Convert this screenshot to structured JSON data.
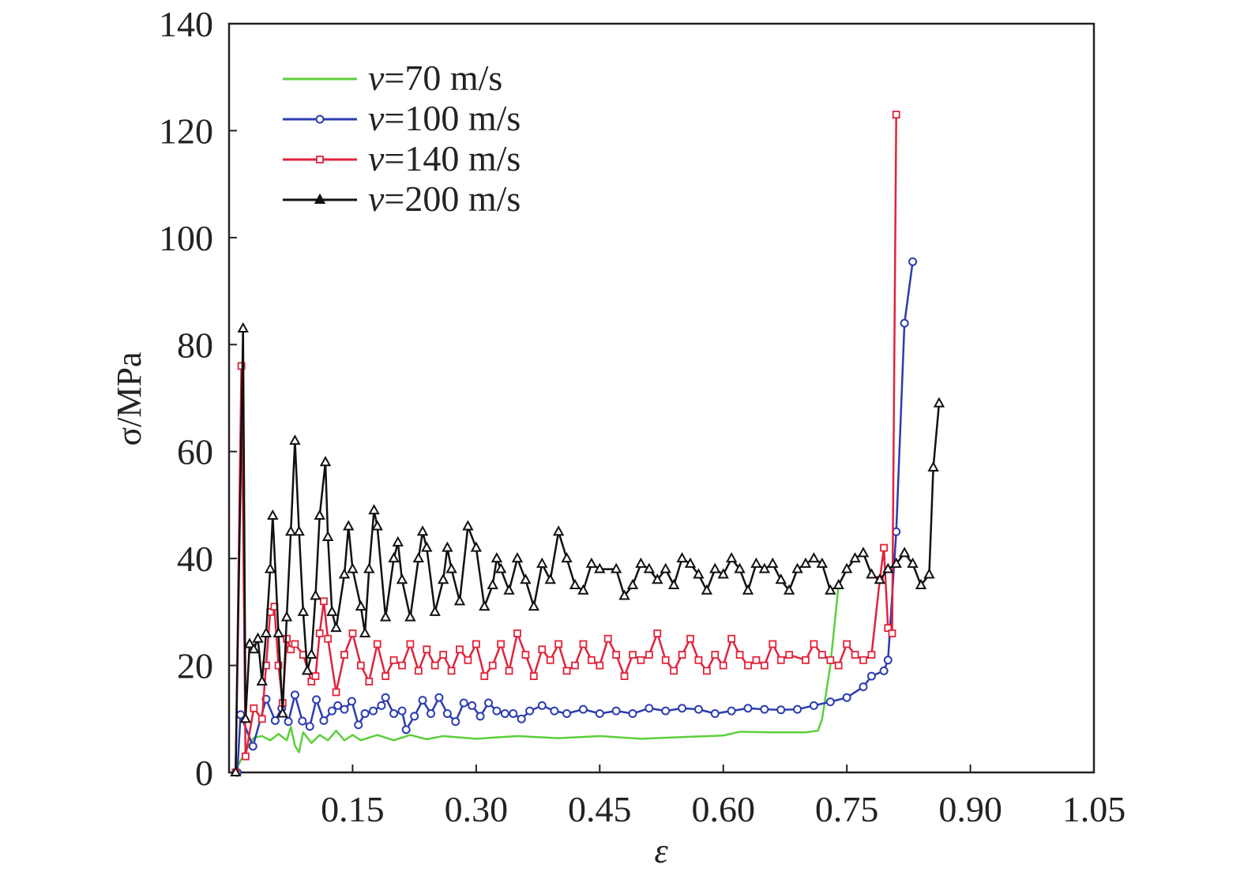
{
  "chart_data": {
    "type": "line",
    "title": "",
    "xlabel": "ε",
    "ylabel": "σ/MPa",
    "xlim": [
      0,
      1.05
    ],
    "ylim": [
      0,
      140
    ],
    "x_ticks": [
      "0.15",
      "0.30",
      "0.45",
      "0.60",
      "0.75",
      "0.90",
      "1.05"
    ],
    "x_tick_values": [
      0.15,
      0.3,
      0.45,
      0.6,
      0.75,
      0.9,
      1.05
    ],
    "y_ticks": [
      "0",
      "20",
      "40",
      "60",
      "80",
      "100",
      "120",
      "140"
    ],
    "y_tick_values": [
      0,
      20,
      40,
      60,
      80,
      100,
      120,
      140
    ],
    "grid": false,
    "legend_position": "top-left",
    "series": [
      {
        "name": "v=70 m/s",
        "v_prefix": "v",
        "label_rest": "=70 m/s",
        "color": "#5ccf3c",
        "marker": "none",
        "points": [
          [
            0.005,
            0
          ],
          [
            0.01,
            1
          ],
          [
            0.02,
            4
          ],
          [
            0.03,
            6.5
          ],
          [
            0.04,
            6.8
          ],
          [
            0.05,
            6
          ],
          [
            0.06,
            7.2
          ],
          [
            0.07,
            6
          ],
          [
            0.075,
            8.5
          ],
          [
            0.08,
            5
          ],
          [
            0.085,
            3.8
          ],
          [
            0.09,
            7.5
          ],
          [
            0.1,
            5.5
          ],
          [
            0.11,
            7
          ],
          [
            0.12,
            6
          ],
          [
            0.13,
            7.8
          ],
          [
            0.14,
            6
          ],
          [
            0.15,
            7
          ],
          [
            0.16,
            6
          ],
          [
            0.18,
            7
          ],
          [
            0.2,
            6
          ],
          [
            0.22,
            7
          ],
          [
            0.24,
            6.2
          ],
          [
            0.26,
            6.8
          ],
          [
            0.3,
            6.3
          ],
          [
            0.35,
            6.8
          ],
          [
            0.4,
            6.4
          ],
          [
            0.45,
            6.8
          ],
          [
            0.5,
            6.3
          ],
          [
            0.55,
            6.6
          ],
          [
            0.6,
            6.9
          ],
          [
            0.62,
            7.6
          ],
          [
            0.66,
            7.5
          ],
          [
            0.7,
            7.5
          ],
          [
            0.715,
            7.8
          ],
          [
            0.72,
            10
          ],
          [
            0.73,
            20
          ],
          [
            0.74,
            35
          ]
        ]
      },
      {
        "name": "v=100 m/s",
        "v_prefix": "v",
        "label_rest": "=100 m/s",
        "color": "#2b3cb0",
        "marker": "circle",
        "points": [
          [
            0.01,
            0
          ],
          [
            0.014,
            10.8
          ],
          [
            0.029,
            4.9
          ],
          [
            0.045,
            13.7
          ],
          [
            0.056,
            9.7
          ],
          [
            0.064,
            12
          ],
          [
            0.072,
            9.5
          ],
          [
            0.08,
            14.5
          ],
          [
            0.089,
            9.6
          ],
          [
            0.098,
            8.6
          ],
          [
            0.106,
            13.6
          ],
          [
            0.115,
            9.7
          ],
          [
            0.125,
            11.5
          ],
          [
            0.132,
            12.5
          ],
          [
            0.14,
            11.8
          ],
          [
            0.149,
            13.3
          ],
          [
            0.157,
            8.9
          ],
          [
            0.165,
            11
          ],
          [
            0.175,
            11.5
          ],
          [
            0.185,
            12.5
          ],
          [
            0.19,
            14
          ],
          [
            0.2,
            11
          ],
          [
            0.21,
            11.5
          ],
          [
            0.215,
            8
          ],
          [
            0.225,
            10.5
          ],
          [
            0.235,
            13.5
          ],
          [
            0.245,
            11
          ],
          [
            0.255,
            14
          ],
          [
            0.265,
            11
          ],
          [
            0.275,
            9.5
          ],
          [
            0.285,
            13
          ],
          [
            0.295,
            12.5
          ],
          [
            0.305,
            10.5
          ],
          [
            0.315,
            13
          ],
          [
            0.325,
            11.5
          ],
          [
            0.335,
            11
          ],
          [
            0.345,
            11
          ],
          [
            0.355,
            10
          ],
          [
            0.365,
            11.5
          ],
          [
            0.38,
            12.5
          ],
          [
            0.395,
            11.5
          ],
          [
            0.41,
            11
          ],
          [
            0.43,
            11.8
          ],
          [
            0.45,
            11
          ],
          [
            0.47,
            11.5
          ],
          [
            0.49,
            11
          ],
          [
            0.51,
            12
          ],
          [
            0.53,
            11.5
          ],
          [
            0.55,
            12
          ],
          [
            0.57,
            11.8
          ],
          [
            0.59,
            11
          ],
          [
            0.61,
            11.5
          ],
          [
            0.63,
            12
          ],
          [
            0.65,
            11.8
          ],
          [
            0.67,
            11.7
          ],
          [
            0.69,
            11.8
          ],
          [
            0.71,
            12.5
          ],
          [
            0.73,
            13.2
          ],
          [
            0.75,
            14
          ],
          [
            0.77,
            16
          ],
          [
            0.78,
            18
          ],
          [
            0.795,
            19
          ],
          [
            0.8,
            21
          ],
          [
            0.81,
            45
          ],
          [
            0.82,
            84
          ],
          [
            0.83,
            95.5
          ]
        ]
      },
      {
        "name": "v=140 m/s",
        "v_prefix": "v",
        "label_rest": "=140 m/s",
        "color": "#e0233a",
        "marker": "square",
        "points": [
          [
            0.008,
            0
          ],
          [
            0.015,
            76
          ],
          [
            0.02,
            3
          ],
          [
            0.03,
            12
          ],
          [
            0.04,
            10
          ],
          [
            0.045,
            20
          ],
          [
            0.05,
            30
          ],
          [
            0.055,
            31
          ],
          [
            0.06,
            20
          ],
          [
            0.065,
            13
          ],
          [
            0.07,
            25
          ],
          [
            0.075,
            23
          ],
          [
            0.08,
            24
          ],
          [
            0.09,
            22
          ],
          [
            0.1,
            17
          ],
          [
            0.105,
            18
          ],
          [
            0.11,
            26
          ],
          [
            0.115,
            32
          ],
          [
            0.12,
            25
          ],
          [
            0.13,
            15
          ],
          [
            0.14,
            22
          ],
          [
            0.15,
            26
          ],
          [
            0.16,
            20
          ],
          [
            0.17,
            17
          ],
          [
            0.18,
            24
          ],
          [
            0.19,
            18
          ],
          [
            0.2,
            21
          ],
          [
            0.21,
            20
          ],
          [
            0.22,
            24
          ],
          [
            0.23,
            19
          ],
          [
            0.24,
            23
          ],
          [
            0.25,
            20
          ],
          [
            0.26,
            22
          ],
          [
            0.27,
            19
          ],
          [
            0.28,
            23
          ],
          [
            0.29,
            21
          ],
          [
            0.3,
            24
          ],
          [
            0.31,
            18
          ],
          [
            0.32,
            20
          ],
          [
            0.33,
            24
          ],
          [
            0.34,
            19
          ],
          [
            0.35,
            26
          ],
          [
            0.36,
            22
          ],
          [
            0.37,
            18
          ],
          [
            0.38,
            23
          ],
          [
            0.39,
            21
          ],
          [
            0.4,
            24
          ],
          [
            0.41,
            19
          ],
          [
            0.42,
            20
          ],
          [
            0.43,
            24
          ],
          [
            0.44,
            21
          ],
          [
            0.45,
            20
          ],
          [
            0.46,
            25
          ],
          [
            0.47,
            22
          ],
          [
            0.48,
            18
          ],
          [
            0.49,
            22
          ],
          [
            0.5,
            21
          ],
          [
            0.51,
            22
          ],
          [
            0.52,
            26
          ],
          [
            0.53,
            21
          ],
          [
            0.54,
            19
          ],
          [
            0.55,
            22
          ],
          [
            0.56,
            25
          ],
          [
            0.57,
            21
          ],
          [
            0.58,
            19
          ],
          [
            0.59,
            22
          ],
          [
            0.6,
            20
          ],
          [
            0.61,
            25
          ],
          [
            0.62,
            22
          ],
          [
            0.63,
            20
          ],
          [
            0.64,
            21
          ],
          [
            0.65,
            20
          ],
          [
            0.66,
            24
          ],
          [
            0.67,
            21
          ],
          [
            0.68,
            22
          ],
          [
            0.7,
            21
          ],
          [
            0.71,
            24
          ],
          [
            0.72,
            22
          ],
          [
            0.73,
            21
          ],
          [
            0.74,
            20
          ],
          [
            0.75,
            24
          ],
          [
            0.76,
            22
          ],
          [
            0.77,
            21
          ],
          [
            0.78,
            22
          ],
          [
            0.79,
            36
          ],
          [
            0.795,
            42
          ],
          [
            0.8,
            27
          ],
          [
            0.805,
            26
          ],
          [
            0.81,
            123
          ]
        ]
      },
      {
        "name": "v=200 m/s",
        "v_prefix": "v",
        "label_rest": "=200 m/s",
        "color": "#111111",
        "marker": "triangle",
        "points": [
          [
            0.008,
            0
          ],
          [
            0.017,
            83
          ],
          [
            0.02,
            10
          ],
          [
            0.025,
            24
          ],
          [
            0.03,
            23
          ],
          [
            0.035,
            25
          ],
          [
            0.04,
            17
          ],
          [
            0.045,
            26
          ],
          [
            0.05,
            38
          ],
          [
            0.053,
            48
          ],
          [
            0.06,
            26
          ],
          [
            0.065,
            11
          ],
          [
            0.07,
            29
          ],
          [
            0.075,
            45
          ],
          [
            0.08,
            62
          ],
          [
            0.085,
            45
          ],
          [
            0.09,
            30
          ],
          [
            0.095,
            19
          ],
          [
            0.1,
            22
          ],
          [
            0.105,
            33
          ],
          [
            0.11,
            48
          ],
          [
            0.117,
            58
          ],
          [
            0.12,
            44
          ],
          [
            0.125,
            30
          ],
          [
            0.13,
            27
          ],
          [
            0.14,
            37
          ],
          [
            0.145,
            46
          ],
          [
            0.15,
            38
          ],
          [
            0.16,
            31
          ],
          [
            0.165,
            26
          ],
          [
            0.17,
            38
          ],
          [
            0.176,
            49
          ],
          [
            0.18,
            46
          ],
          [
            0.19,
            29
          ],
          [
            0.2,
            40
          ],
          [
            0.205,
            43
          ],
          [
            0.21,
            36
          ],
          [
            0.22,
            29
          ],
          [
            0.23,
            40
          ],
          [
            0.235,
            45
          ],
          [
            0.24,
            42
          ],
          [
            0.25,
            30
          ],
          [
            0.26,
            36
          ],
          [
            0.265,
            42
          ],
          [
            0.27,
            38
          ],
          [
            0.28,
            32
          ],
          [
            0.29,
            46
          ],
          [
            0.3,
            42
          ],
          [
            0.31,
            31
          ],
          [
            0.32,
            35
          ],
          [
            0.325,
            40
          ],
          [
            0.33,
            38
          ],
          [
            0.34,
            34
          ],
          [
            0.35,
            40
          ],
          [
            0.36,
            36
          ],
          [
            0.37,
            31
          ],
          [
            0.38,
            39
          ],
          [
            0.39,
            36
          ],
          [
            0.4,
            45
          ],
          [
            0.41,
            40
          ],
          [
            0.42,
            35
          ],
          [
            0.43,
            34
          ],
          [
            0.44,
            39
          ],
          [
            0.45,
            38
          ],
          [
            0.47,
            38
          ],
          [
            0.48,
            33
          ],
          [
            0.49,
            35
          ],
          [
            0.5,
            39
          ],
          [
            0.51,
            38
          ],
          [
            0.52,
            36
          ],
          [
            0.53,
            38
          ],
          [
            0.54,
            35
          ],
          [
            0.55,
            40
          ],
          [
            0.56,
            39
          ],
          [
            0.57,
            37
          ],
          [
            0.58,
            34
          ],
          [
            0.59,
            38
          ],
          [
            0.6,
            37
          ],
          [
            0.61,
            40
          ],
          [
            0.62,
            38
          ],
          [
            0.63,
            34
          ],
          [
            0.64,
            39
          ],
          [
            0.65,
            38
          ],
          [
            0.66,
            39
          ],
          [
            0.67,
            36
          ],
          [
            0.68,
            34
          ],
          [
            0.69,
            38
          ],
          [
            0.7,
            39
          ],
          [
            0.71,
            40
          ],
          [
            0.72,
            39
          ],
          [
            0.73,
            34
          ],
          [
            0.74,
            35
          ],
          [
            0.75,
            38
          ],
          [
            0.76,
            40
          ],
          [
            0.77,
            41
          ],
          [
            0.78,
            37
          ],
          [
            0.79,
            36
          ],
          [
            0.8,
            38
          ],
          [
            0.81,
            39
          ],
          [
            0.82,
            41
          ],
          [
            0.83,
            39
          ],
          [
            0.84,
            35
          ],
          [
            0.85,
            37
          ],
          [
            0.855,
            57
          ],
          [
            0.862,
            69
          ]
        ]
      }
    ]
  }
}
